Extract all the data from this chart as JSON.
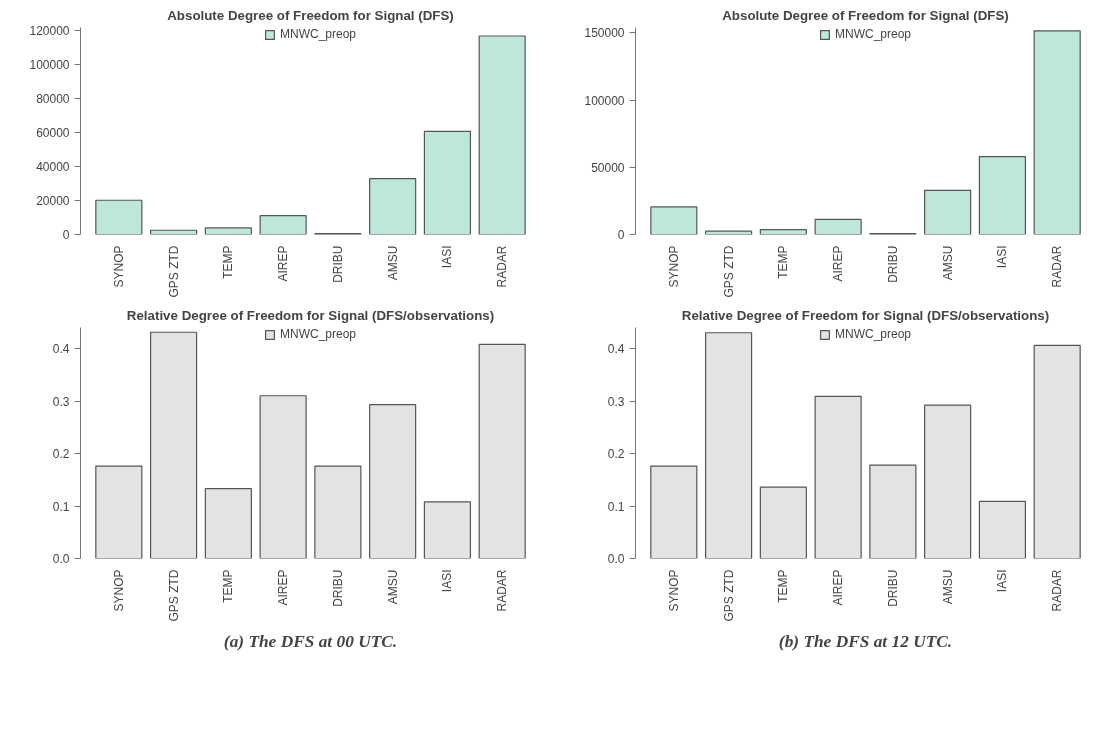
{
  "chart_data": [
    {
      "type": "bar",
      "title": "Absolute Degree of Freedom for Signal (DFS)",
      "categories": [
        "SYNOP",
        "GPS ZTD",
        "TEMP",
        "AIREP",
        "DRIBU",
        "AMSU",
        "IASI",
        "RADAR"
      ],
      "series": [
        {
          "name": "MNWC_preop",
          "color": "#bde8d9",
          "values": [
            20200,
            2500,
            3900,
            11100,
            500,
            32900,
            60800,
            117000
          ]
        }
      ],
      "ylim": [
        0,
        122000
      ],
      "yticks": [
        0,
        20000,
        40000,
        60000,
        80000,
        100000,
        120000
      ],
      "legend": "top",
      "grid": false
    },
    {
      "type": "bar",
      "title": "Absolute Degree of Freedom for Signal (DFS)",
      "categories": [
        "SYNOP",
        "GPS ZTD",
        "TEMP",
        "AIREP",
        "DRIBU",
        "AMSU",
        "IASI",
        "RADAR"
      ],
      "series": [
        {
          "name": "MNWC_preop",
          "color": "#bde8d9",
          "values": [
            20500,
            2500,
            3700,
            11200,
            600,
            32900,
            58000,
            151500
          ]
        }
      ],
      "ylim": [
        0,
        154000
      ],
      "yticks": [
        0,
        50000,
        100000,
        150000
      ],
      "legend": "top",
      "grid": false
    },
    {
      "type": "bar",
      "title": "Relative Degree of Freedom for Signal (DFS/observations)",
      "categories": [
        "SYNOP",
        "GPS ZTD",
        "TEMP",
        "AIREP",
        "DRIBU",
        "AMSU",
        "IASI",
        "RADAR"
      ],
      "series": [
        {
          "name": "MNWC_preop",
          "color": "#e3e3e3",
          "values": [
            0.176,
            0.431,
            0.133,
            0.31,
            0.176,
            0.293,
            0.108,
            0.408
          ]
        }
      ],
      "ylim": [
        0,
        0.44
      ],
      "yticks": [
        {
          "value": 0,
          "label": "0.0"
        },
        0.1,
        0.2,
        0.3,
        0.4
      ],
      "legend": "top",
      "grid": false,
      "annotations": [
        "(a) The DFS at 00 UTC."
      ]
    },
    {
      "type": "bar",
      "title": "Relative Degree of Freedom for Signal (DFS/observations)",
      "categories": [
        "SYNOP",
        "GPS ZTD",
        "TEMP",
        "AIREP",
        "DRIBU",
        "AMSU",
        "IASI",
        "RADAR"
      ],
      "series": [
        {
          "name": "MNWC_preop",
          "color": "#e3e3e3",
          "values": [
            0.176,
            0.43,
            0.136,
            0.309,
            0.178,
            0.292,
            0.109,
            0.406
          ]
        }
      ],
      "ylim": [
        0,
        0.44
      ],
      "yticks": [
        {
          "value": 0,
          "label": "0.0"
        },
        0.1,
        0.2,
        0.3,
        0.4
      ],
      "legend": "top",
      "grid": false,
      "annotations": [
        "(b) The DFS at 12 UTC."
      ]
    }
  ]
}
